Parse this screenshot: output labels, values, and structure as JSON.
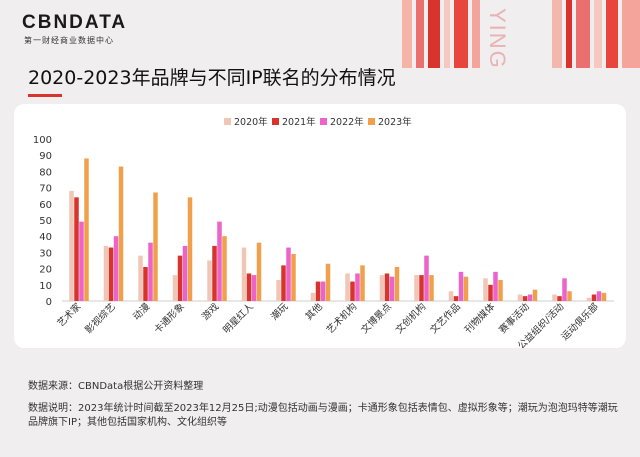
{
  "logo": {
    "name": "CBNDATA",
    "subtitle": "第一财经商业数据中心"
  },
  "deco_text": "YING",
  "title": "2020-2023年品牌与不同IP联名的分布情况",
  "notes": {
    "source": "数据来源：CBNData根据公开资料整理",
    "explanation": "数据说明：2023年统计时间截至2023年12月25日;动漫包括动画与漫画；卡通形象包括表情包、虚拟形象等；潮玩为泡泡玛特等潮玩品牌旗下IP；其他包括国家机构、文化组织等"
  },
  "colors": {
    "s2020": "#f2c6b7",
    "s2021": "#d9342b",
    "s2022": "#ec64c9",
    "s2023": "#f0a04b"
  },
  "chart_data": {
    "type": "bar",
    "title": "2020-2023年品牌与不同IP联名的分布情况",
    "categories": [
      "艺术家",
      "影视综艺",
      "动漫",
      "卡通形象",
      "游戏",
      "明星红人",
      "潮玩",
      "其他",
      "艺术机构",
      "文博景点",
      "文创机构",
      "文艺作品",
      "刊物媒体",
      "赛事活动",
      "公益组织/活动",
      "运动俱乐部"
    ],
    "series": [
      {
        "name": "2020年",
        "values": [
          68,
          34,
          28,
          16,
          25,
          33,
          13,
          5,
          17,
          16,
          16,
          6,
          14,
          4,
          4,
          2
        ]
      },
      {
        "name": "2021年",
        "values": [
          64,
          33,
          21,
          28,
          34,
          17,
          22,
          12,
          12,
          17,
          16,
          3,
          10,
          3,
          3,
          4
        ]
      },
      {
        "name": "2022年",
        "values": [
          49,
          40,
          36,
          34,
          49,
          16,
          33,
          12,
          17,
          15,
          28,
          18,
          18,
          4,
          14,
          6
        ]
      },
      {
        "name": "2023年",
        "values": [
          88,
          83,
          67,
          64,
          40,
          36,
          29,
          23,
          22,
          21,
          16,
          15,
          13,
          7,
          6,
          5
        ]
      }
    ],
    "ylim": [
      0,
      100
    ],
    "yticks": [
      0,
      10,
      20,
      30,
      40,
      50,
      60,
      70,
      80,
      90,
      100
    ],
    "legend_position": "top-center"
  }
}
